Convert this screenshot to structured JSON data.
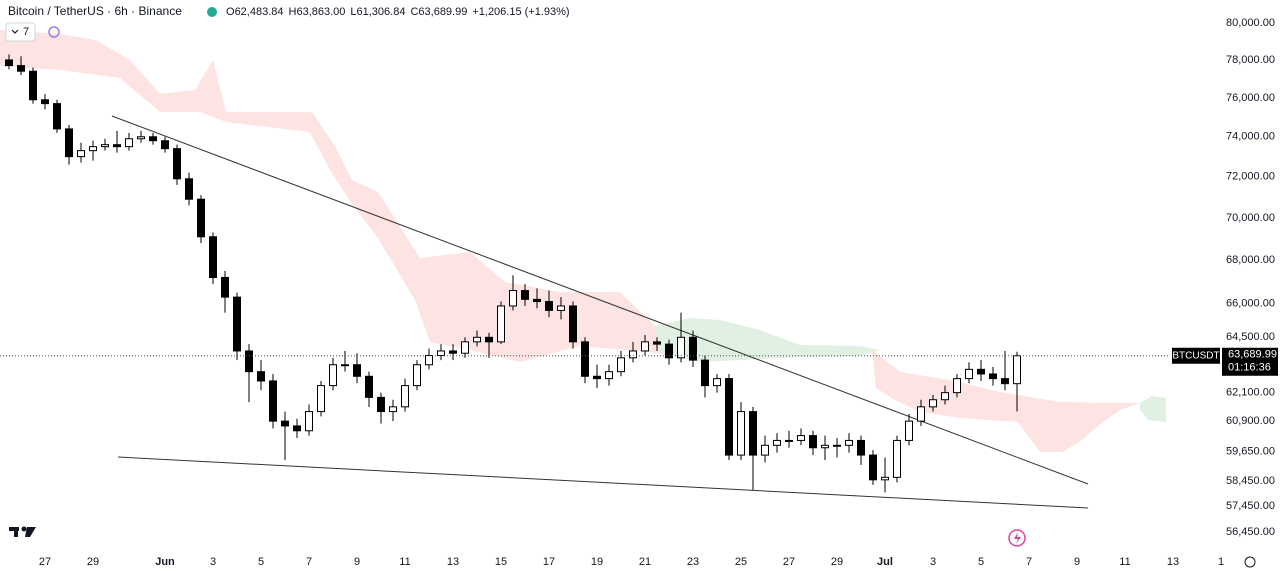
{
  "header": {
    "symbol": "Bitcoin / TetherUS · 6h · Binance",
    "o_label": "O",
    "o": "62,483.84",
    "h_label": "H",
    "h": "63,863.00",
    "l_label": "L",
    "l": "61,306.84",
    "c_label": "C",
    "c": "63,689.99",
    "change": "+1,206.15 (+1.93%)",
    "indicators": "7"
  },
  "price_tag": {
    "symbol": "BTCUSDT",
    "price": "63,689.99",
    "countdown": "01:16:36"
  },
  "chart_data": {
    "type": "candlestick",
    "log_scale": true,
    "grid": false,
    "up_color": "#ffffff",
    "down_color": "#000000",
    "border_color": "#000000",
    "x": [
      -1.5,
      -1,
      -0.5,
      0,
      0.5,
      1,
      1.5,
      2,
      2.5,
      3,
      3.5,
      4,
      4.5,
      5,
      5.5,
      6,
      6.5,
      7,
      7.5,
      8,
      8.5,
      9,
      9.5,
      10,
      10.5,
      11,
      11.5,
      12,
      12.5,
      13,
      13.5,
      14,
      14.5,
      15,
      15.5,
      16,
      16.5,
      17,
      17.5,
      18,
      18.5,
      19,
      19.5,
      20,
      20.5,
      21,
      21.5,
      22,
      22.5,
      23,
      23.5,
      24,
      24.5,
      25,
      25.5,
      26,
      26.5,
      27,
      27.5,
      28,
      28.5,
      29,
      29.5,
      30,
      30.5,
      31,
      31.5,
      32,
      32.5,
      33,
      33.5,
      34,
      34.5,
      35,
      35.5,
      36,
      36.5,
      37,
      37.5,
      38,
      38.5,
      39,
      39.5,
      40,
      40.5
    ],
    "open": [
      78000,
      77700,
      77400,
      75900,
      75700,
      74400,
      73000,
      73300,
      73500,
      73600,
      73500,
      73900,
      74000,
      73800,
      73400,
      71900,
      70900,
      69100,
      67200,
      66300,
      63900,
      63000,
      62600,
      60900,
      60700,
      60500,
      61300,
      62400,
      63300,
      63300,
      62800,
      61900,
      61300,
      61500,
      62400,
      63300,
      63700,
      63900,
      63800,
      64300,
      64500,
      64300,
      65900,
      66600,
      66200,
      66100,
      65700,
      65900,
      64300,
      62800,
      62700,
      63000,
      63600,
      63900,
      64300,
      64200,
      63600,
      64500,
      63500,
      62400,
      62700,
      59500,
      61300,
      59500,
      59900,
      60100,
      60100,
      60300,
      59800,
      59900,
      59900,
      60100,
      59500,
      58500,
      58600,
      60100,
      60900,
      61500,
      61800,
      62100,
      62700,
      63100,
      62900,
      62700,
      62483.84
    ],
    "high": [
      78300,
      78200,
      77600,
      76200,
      75900,
      74600,
      73700,
      73800,
      73900,
      74300,
      74200,
      74300,
      74200,
      74000,
      73600,
      72200,
      71100,
      69300,
      67500,
      66500,
      64200,
      63500,
      62900,
      61300,
      61000,
      61600,
      62600,
      63600,
      63900,
      63800,
      63000,
      62100,
      61800,
      62700,
      63500,
      64000,
      64200,
      64200,
      64500,
      64800,
      64700,
      66100,
      67300,
      66900,
      66700,
      66600,
      66300,
      66100,
      64500,
      63300,
      63300,
      63900,
      64300,
      64600,
      64500,
      64400,
      65600,
      64800,
      63700,
      62900,
      62900,
      61700,
      61500,
      60300,
      60400,
      60500,
      60600,
      60500,
      60300,
      60200,
      60400,
      60300,
      59700,
      59400,
      60300,
      61200,
      61800,
      62000,
      62400,
      62900,
      63400,
      63500,
      63200,
      63900,
      63863
    ],
    "low": [
      77500,
      77200,
      75700,
      75400,
      74200,
      72600,
      72700,
      72800,
      73300,
      73200,
      73300,
      73700,
      73600,
      73200,
      71600,
      70600,
      68800,
      66900,
      65600,
      63500,
      61700,
      62200,
      60600,
      59300,
      60200,
      60300,
      61100,
      62200,
      63000,
      62500,
      61500,
      60800,
      60900,
      61300,
      62200,
      63100,
      63500,
      63500,
      63600,
      64100,
      63600,
      64200,
      65700,
      65900,
      65800,
      65400,
      65300,
      64000,
      62500,
      62300,
      62400,
      62800,
      63400,
      63700,
      63900,
      63300,
      63400,
      63200,
      61900,
      62100,
      59300,
      59300,
      58100,
      59200,
      59600,
      59800,
      59900,
      59500,
      59300,
      59400,
      59600,
      59100,
      58300,
      58000,
      58400,
      59900,
      60700,
      61300,
      61600,
      61900,
      62500,
      62600,
      62400,
      62200,
      61306.84
    ],
    "close": [
      77700,
      77400,
      75900,
      75700,
      74400,
      73000,
      73300,
      73500,
      73600,
      73500,
      73900,
      74000,
      73800,
      73400,
      71900,
      70900,
      69100,
      67200,
      66300,
      63900,
      63000,
      62600,
      60900,
      60700,
      60500,
      61300,
      62400,
      63300,
      63300,
      62800,
      61900,
      61300,
      61500,
      62400,
      63300,
      63700,
      63900,
      63800,
      64300,
      64500,
      64300,
      65900,
      66600,
      66200,
      66100,
      65700,
      65900,
      64300,
      62800,
      62700,
      63000,
      63600,
      63900,
      64300,
      64200,
      63600,
      64500,
      63500,
      62400,
      62700,
      59500,
      61300,
      59500,
      59900,
      60100,
      60100,
      60300,
      59800,
      59900,
      59900,
      60100,
      59500,
      58500,
      58600,
      60100,
      60900,
      61500,
      61800,
      62100,
      62700,
      63100,
      62900,
      62700,
      62483.84,
      63689.99
    ],
    "xlim": [
      -1.875,
      50.5
    ],
    "xticks": [
      {
        "value": 0,
        "label": "27"
      },
      {
        "value": 2,
        "label": "29"
      },
      {
        "value": 5,
        "label": "Jun"
      },
      {
        "value": 7,
        "label": "3"
      },
      {
        "value": 9,
        "label": "5"
      },
      {
        "value": 11,
        "label": "7"
      },
      {
        "value": 13,
        "label": "9"
      },
      {
        "value": 15,
        "label": "11"
      },
      {
        "value": 17,
        "label": "13"
      },
      {
        "value": 19,
        "label": "15"
      },
      {
        "value": 21,
        "label": "17"
      },
      {
        "value": 23,
        "label": "19"
      },
      {
        "value": 25,
        "label": "21"
      },
      {
        "value": 27,
        "label": "23"
      },
      {
        "value": 29,
        "label": "25"
      },
      {
        "value": 31,
        "label": "27"
      },
      {
        "value": 33,
        "label": "29"
      },
      {
        "value": 35,
        "label": "Jul"
      },
      {
        "value": 37,
        "label": "3"
      },
      {
        "value": 39,
        "label": "5"
      },
      {
        "value": 41,
        "label": "7"
      },
      {
        "value": 43,
        "label": "9"
      },
      {
        "value": 45,
        "label": "11"
      },
      {
        "value": 47,
        "label": "13"
      },
      {
        "value": 49,
        "label": "1"
      }
    ],
    "ylim": [
      55830,
      81270
    ],
    "yticks": [
      {
        "value": 80000,
        "label": "80,000.00"
      },
      {
        "value": 78000,
        "label": "78,000.00"
      },
      {
        "value": 76000,
        "label": "76,000.00"
      },
      {
        "value": 74000,
        "label": "74,000.00"
      },
      {
        "value": 72000,
        "label": "72,000.00"
      },
      {
        "value": 70000,
        "label": "70,000.00"
      },
      {
        "value": 68000,
        "label": "68,000.00"
      },
      {
        "value": 66000,
        "label": "66,000.00"
      },
      {
        "value": 64500,
        "label": "64,500.00"
      },
      {
        "value": 62100,
        "label": "62,100.00"
      },
      {
        "value": 60900,
        "label": "60,900.00"
      },
      {
        "value": 59650,
        "label": "59,650.00"
      },
      {
        "value": 58450,
        "label": "58,450.00"
      },
      {
        "value": 57450,
        "label": "57,450.00"
      },
      {
        "value": 56450,
        "label": "56,450.00"
      }
    ]
  }
}
